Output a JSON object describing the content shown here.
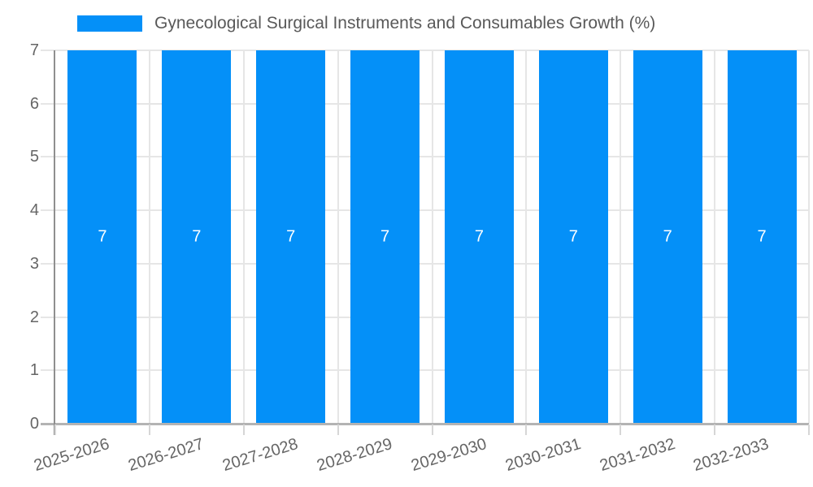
{
  "chart_data": {
    "type": "bar",
    "title": "Gynecological Surgical Instruments and Consumables Growth (%)",
    "legend": [
      {
        "label": "Gynecological Surgical Instruments and Consumables Growth (%)",
        "color": "#0490f8"
      }
    ],
    "legend_position": "top",
    "categories": [
      "2025-2026",
      "2026-2027",
      "2027-2028",
      "2028-2029",
      "2029-2030",
      "2030-2031",
      "2031-2032",
      "2032-2033"
    ],
    "values": [
      7,
      7,
      7,
      7,
      7,
      7,
      7,
      7
    ],
    "bar_value_labels": [
      "7",
      "7",
      "7",
      "7",
      "7",
      "7",
      "7",
      "7"
    ],
    "xlabel": "",
    "ylabel": "",
    "ylim": [
      0,
      7
    ],
    "yticks": [
      0,
      1,
      2,
      3,
      4,
      5,
      6,
      7
    ],
    "grid": true,
    "colors": {
      "bar": "#0490f8",
      "grid": "#e6e6e6",
      "axis_line": "#8f8f8f",
      "baseline": "#b3b3b3",
      "tick": "#d6d6d6",
      "tick_label": "#666666",
      "value_label": "#ffffff",
      "background": "#ffffff"
    }
  }
}
